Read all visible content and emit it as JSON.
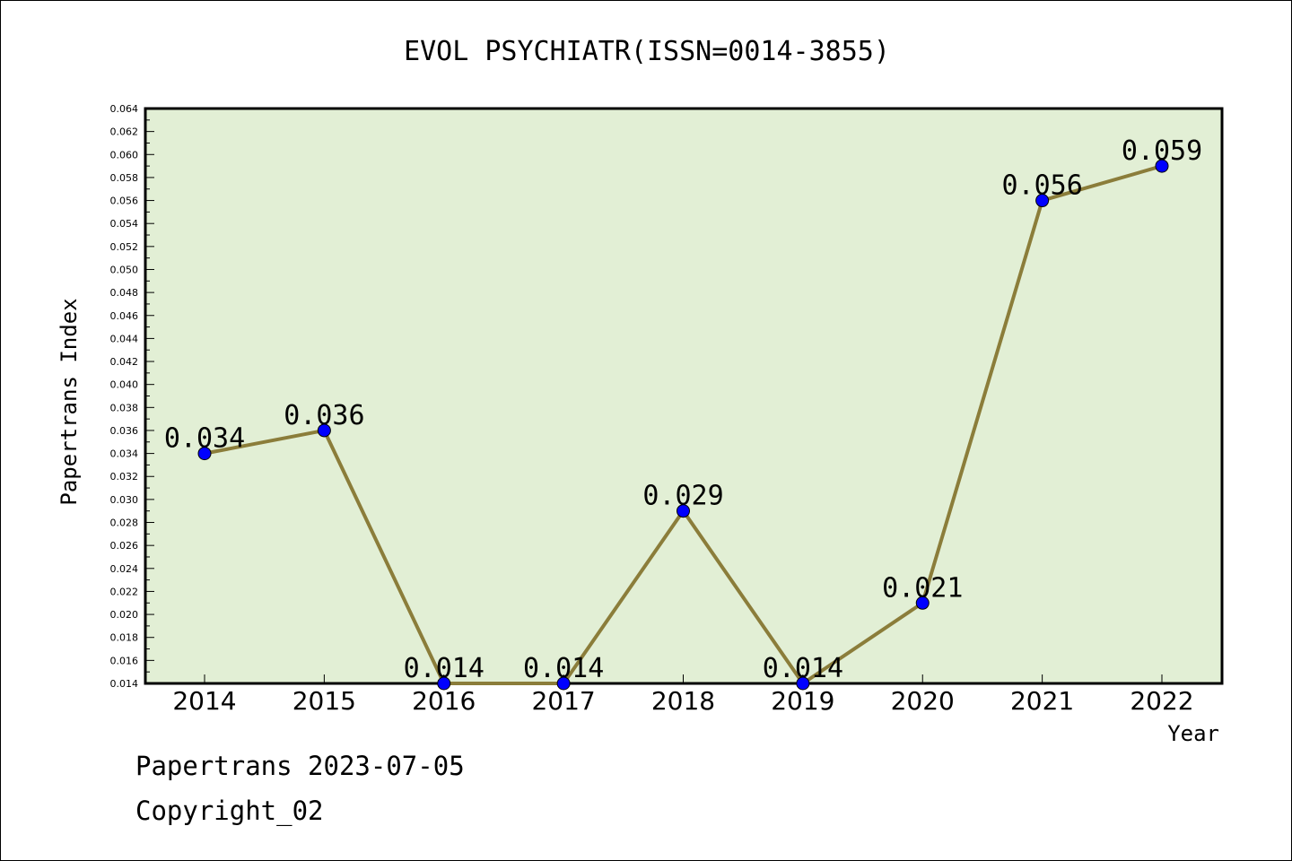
{
  "chart_data": {
    "type": "line",
    "title": "EVOL PSYCHIATR(ISSN=0014-3855)",
    "xlabel": "Year",
    "ylabel": "Papertrans Index",
    "categories": [
      "2014",
      "2015",
      "2016",
      "2017",
      "2018",
      "2019",
      "2020",
      "2021",
      "2022"
    ],
    "values": [
      0.034,
      0.036,
      0.014,
      0.014,
      0.029,
      0.014,
      0.021,
      0.056,
      0.059
    ],
    "data_labels": [
      "0.034",
      "0.036",
      "0.014",
      "0.014",
      "0.029",
      "0.014",
      "0.021",
      "0.056",
      "0.059"
    ],
    "ylim": [
      0.014,
      0.064
    ],
    "ytick_labels": [
      "0.014",
      "0.016",
      "0.018",
      "0.020",
      "0.022",
      "0.024",
      "0.026",
      "0.028",
      "0.030",
      "0.032",
      "0.034",
      "0.036",
      "0.038",
      "0.040",
      "0.042",
      "0.044",
      "0.046",
      "0.048",
      "0.050",
      "0.052",
      "0.054",
      "0.056",
      "0.058",
      "0.060",
      "0.062",
      "0.064"
    ],
    "grid": false,
    "legend": "none",
    "colors": {
      "plot_background": "#e2efd5",
      "line": "#8b7d3a",
      "marker": "#0000ff"
    }
  },
  "footer": {
    "stamp": "Papertrans 2023-07-05",
    "copyright": "Copyright_02"
  }
}
